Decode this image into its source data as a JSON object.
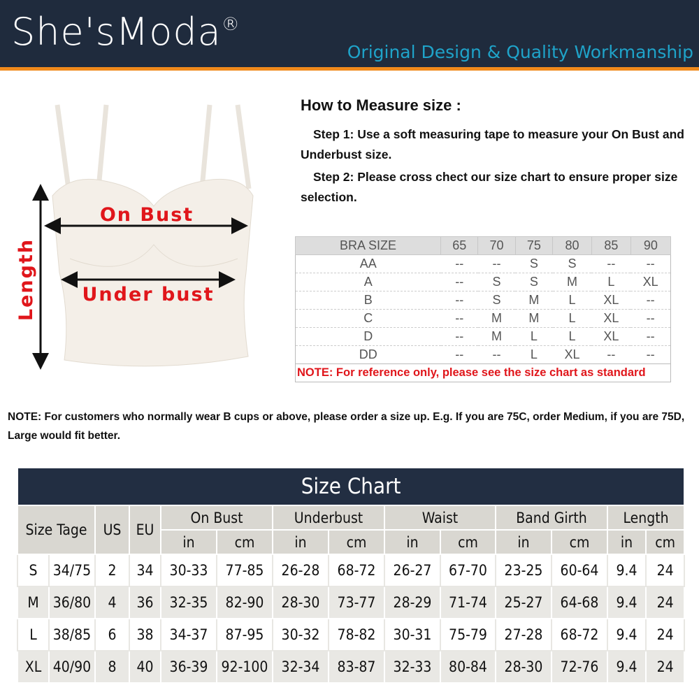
{
  "header": {
    "brand": "She'sModa",
    "trademark": "®",
    "tagline": "Original Design & Quality Workmanship",
    "colors": {
      "banner": "#1f2b3d",
      "accent": "#f08a1c",
      "tagline": "#1fa3c9"
    }
  },
  "illustration": {
    "labels": {
      "on_bust": "On Bust",
      "under_bust": "Under bust",
      "length": "Length"
    },
    "label_color": "#e0161b"
  },
  "howto": {
    "title": "How to Measure size :",
    "step1": "Step 1: Use a soft measuring tape to measure your On Bust and Underbust size.",
    "step2": "Step 2: Please cross chect our size chart to ensure proper size selection."
  },
  "bra_table": {
    "header": [
      "BRA SIZE",
      "65",
      "70",
      "75",
      "80",
      "85",
      "90"
    ],
    "rows": [
      [
        "AA",
        "--",
        "--",
        "S",
        "S",
        "--",
        "--"
      ],
      [
        "A",
        "--",
        "S",
        "S",
        "M",
        "L",
        "XL"
      ],
      [
        "B",
        "--",
        "S",
        "M",
        "L",
        "XL",
        "--"
      ],
      [
        "C",
        "--",
        "M",
        "M",
        "L",
        "XL",
        "--"
      ],
      [
        "D",
        "--",
        "M",
        "L",
        "L",
        "XL",
        "--"
      ],
      [
        "DD",
        "--",
        "--",
        "L",
        "XL",
        "--",
        "--"
      ]
    ],
    "note": "NOTE: For reference only, please see the size chart as standard"
  },
  "note": "NOTE: For customers who normally wear B cups or above, please order a size up. E.g. If you are 75C, order Medium, if you are 75D, Large would fit better.",
  "size_chart": {
    "title": "Size Chart",
    "headers": [
      "Size Tage",
      "US",
      "EU",
      "On Bust",
      "Underbust",
      "Waist",
      "Band Girth",
      "Length"
    ],
    "units": [
      "in",
      "cm",
      "in",
      "cm",
      "in",
      "cm",
      "in",
      "cm",
      "in",
      "cm"
    ],
    "rows": [
      [
        "S",
        "34/75",
        "2",
        "34",
        "30-33",
        "77-85",
        "26-28",
        "68-72",
        "26-27",
        "67-70",
        "23-25",
        "60-64",
        "9.4",
        "24"
      ],
      [
        "M",
        "36/80",
        "4",
        "36",
        "32-35",
        "82-90",
        "28-30",
        "73-77",
        "28-29",
        "71-74",
        "25-27",
        "64-68",
        "9.4",
        "24"
      ],
      [
        "L",
        "38/85",
        "6",
        "38",
        "34-37",
        "87-95",
        "30-32",
        "78-82",
        "30-31",
        "75-79",
        "27-28",
        "68-72",
        "9.4",
        "24"
      ],
      [
        "XL",
        "40/90",
        "8",
        "40",
        "36-39",
        "92-100",
        "32-34",
        "83-87",
        "32-33",
        "80-84",
        "28-30",
        "72-76",
        "9.4",
        "24"
      ]
    ]
  }
}
